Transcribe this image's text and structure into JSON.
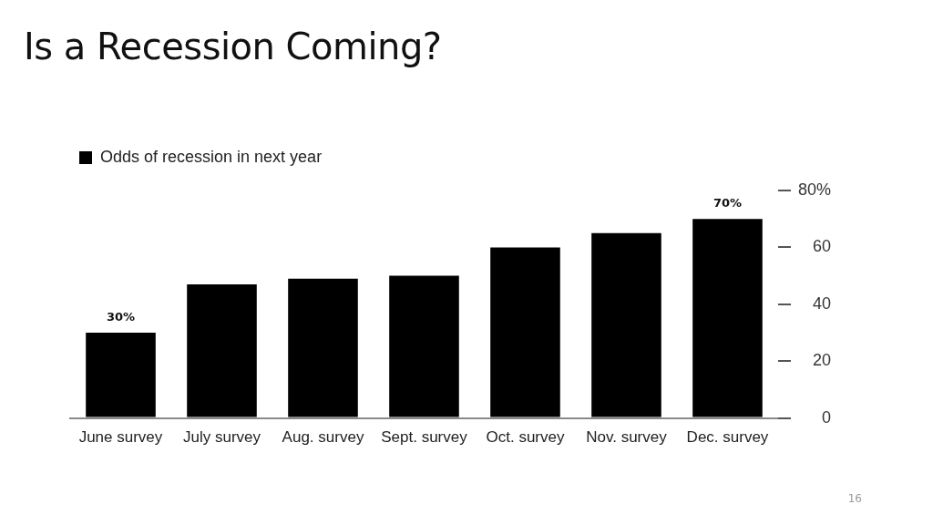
{
  "chart_data": {
    "type": "bar",
    "title": "Is a Recession Coming?",
    "categories": [
      "June survey",
      "July survey",
      "Aug. survey",
      "Sept. survey",
      "Oct. survey",
      "Nov. survey",
      "Dec. survey"
    ],
    "series": [
      {
        "name": "Odds of recession in next year",
        "color": "#000000",
        "values": [
          30,
          47,
          49,
          50,
          60,
          65,
          70
        ],
        "value_labels": [
          "30%",
          null,
          null,
          null,
          null,
          null,
          "70%"
        ]
      }
    ],
    "ylim": [
      0,
      80
    ],
    "yticks": [
      0,
      20,
      40,
      60,
      {
        "value": 80,
        "label": "80%"
      }
    ],
    "legend": "top left",
    "annotations": [
      "16"
    ]
  }
}
